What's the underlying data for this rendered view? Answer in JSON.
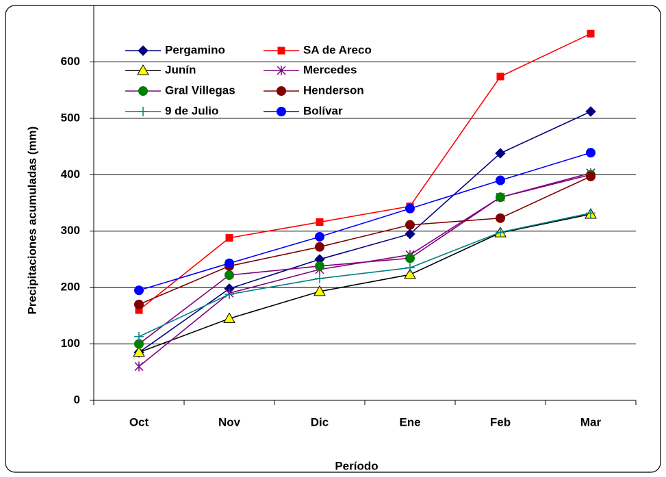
{
  "chart_data": {
    "type": "line",
    "x_label": "Período",
    "y_label": "Precipitaciones acumuladas (mm)",
    "categories": [
      "Oct",
      "Nov",
      "Dic",
      "Ene",
      "Feb",
      "Mar"
    ],
    "ylim": [
      0,
      700
    ],
    "yticks": [
      0,
      100,
      200,
      300,
      400,
      500,
      600
    ],
    "grid": true,
    "legend": "upper left",
    "series": [
      {
        "name": "Pergamino",
        "color": "#000080",
        "marker": "diamond",
        "marker_color": "#000080",
        "values": [
          85,
          198,
          250,
          295,
          438,
          512
        ]
      },
      {
        "name": "SA de Areco",
        "color": "#ff0000",
        "marker": "square",
        "marker_color": "#ff0000",
        "values": [
          160,
          288,
          316,
          344,
          574,
          650
        ]
      },
      {
        "name": "Junín",
        "color": "#000000",
        "marker": "triangle",
        "marker_color": "#ffff00",
        "values": [
          85,
          145,
          193,
          223,
          297,
          330
        ]
      },
      {
        "name": "Mercedes",
        "color": "#800080",
        "marker": "star",
        "marker_color": "#800080",
        "values": [
          60,
          190,
          232,
          258,
          360,
          403
        ]
      },
      {
        "name": "Gral Villegas",
        "color": "#800080",
        "marker": "circle",
        "marker_color": "#008000",
        "values": [
          100,
          222,
          238,
          252,
          360,
          400
        ]
      },
      {
        "name": "Henderson",
        "color": "#800000",
        "marker": "circle",
        "marker_color": "#800000",
        "values": [
          170,
          238,
          272,
          311,
          323,
          397
        ]
      },
      {
        "name": "9 de Julio",
        "color": "#008080",
        "marker": "plus",
        "marker_color": "#008080",
        "values": [
          113,
          188,
          216,
          235,
          298,
          332
        ]
      },
      {
        "name": "Bolívar",
        "color": "#0000ff",
        "marker": "circle",
        "marker_color": "#0000ff",
        "values": [
          195,
          243,
          290,
          340,
          390,
          439
        ]
      }
    ]
  }
}
